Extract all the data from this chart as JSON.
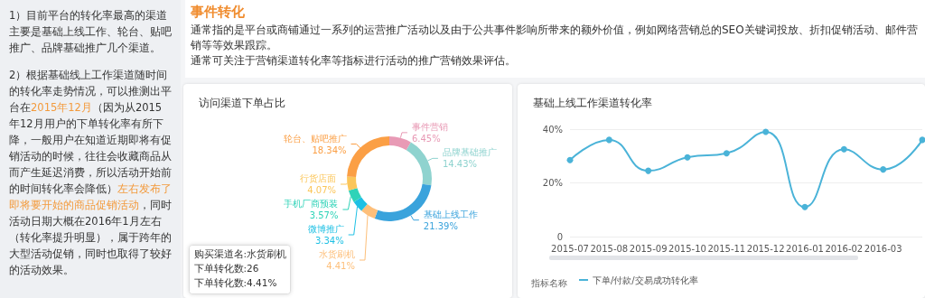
{
  "chart_data": [
    {
      "type": "other",
      "annotations": [
        "1）目前平台的转化率最高的渠道主要是基础上线工作、轮台、贴吧推广、品牌基础推广几个渠道。",
        "2）根据基础线上工作渠道随时间的转化率走势情况，可以推测出平台在",
        "2015年12月",
        "（因为从2015年12月用户的下单转化率有所下降，一般用户在知道近期即将有促销活动的时候，往往会收藏商品从而产生延迟消费，所以活动开始前的时间转化率会降低）",
        "左右发布了即将要开始的商品促销活动",
        "，同时活动日期大概在2016年1月左右（转化率提升明显），属于跨年的大型活动促销，同时也取得了较好的活动效果。"
      ],
      "colors": [
        "#333333",
        "#333333",
        "#f39a3c",
        "#333333",
        "#f39a3c",
        "#333333"
      ]
    },
    {
      "type": "other",
      "title": "事件转化",
      "subtitle": "通常指的是平台或商铺通过一系列的运营推广活动以及由于公共事件影响所带来的额外价值，例如网络营销总的SEO关键词投放、折扣促销活动、邮件营销等等效果跟踪。",
      "annotations": [
        "通常可关注于营销渠道转化率等指标进行活动的推广营销效果评估。"
      ]
    },
    {
      "type": "donut",
      "title": "访问渠道下单占比",
      "categories": [
        "事件营销",
        "品牌基础推广",
        "基础上线工作",
        "水货刷机",
        "微博推广",
        "手机厂商预装",
        "行货店面",
        "轮台、贴吧推广"
      ],
      "values": [
        6.45,
        14.43,
        21.39,
        4.41,
        3.34,
        3.57,
        4.07,
        18.34
      ],
      "value_labels": [
        "6.45%",
        "14.43%",
        "21.39%",
        "4.41%",
        "3.34%",
        "3.57%",
        "4.07%",
        "18.34%"
      ],
      "colors": [
        "#e89ab5",
        "#8fd3cf",
        "#3aa3dc",
        "#fdbf7a",
        "#1ec0e4",
        "#2fd3b8",
        "#fbc65a",
        "#fb9f45"
      ],
      "annotations": [
        "购买渠道名:水货刷机",
        "下单转化数:26",
        "下单转化数:4.41%"
      ]
    },
    {
      "type": "line",
      "title": "基础上线工作渠道转化率",
      "categories": [
        "2015-07",
        "2015-08",
        "2015-09",
        "2015-10",
        "2015-11",
        "2015-12",
        "2016-01",
        "2016-02",
        "2016-03",
        null
      ],
      "series": [
        {
          "name": "下单/付款/交易成功转化率",
          "color": "#4ab3d8",
          "values": [
            28.5,
            36,
            24.5,
            29.5,
            31,
            39,
            11,
            32.5,
            25,
            36
          ]
        }
      ],
      "ylim": [
        0,
        40
      ],
      "yticks": [
        0,
        {
          "value": 20,
          "label": "20%"
        },
        {
          "value": 40,
          "label": "40%"
        }
      ],
      "grid": "y",
      "legend": "bottom left",
      "legend_title": "指标名称",
      "marker": "circle",
      "line_style": "solid"
    }
  ]
}
